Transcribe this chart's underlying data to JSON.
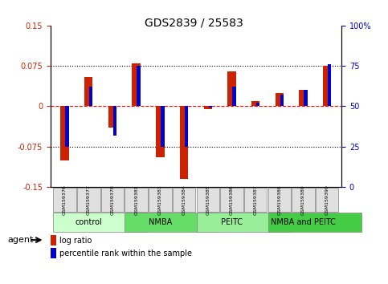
{
  "title": "GDS2839 / 25583",
  "samples": [
    "GSM159376",
    "GSM159377",
    "GSM159378",
    "GSM159381",
    "GSM159383",
    "GSM159384",
    "GSM159385",
    "GSM159386",
    "GSM159387",
    "GSM159388",
    "GSM159389",
    "GSM159390"
  ],
  "log_ratio": [
    -0.1,
    0.055,
    -0.04,
    0.08,
    -0.095,
    -0.135,
    -0.005,
    0.065,
    0.01,
    0.025,
    0.03,
    0.075
  ],
  "percentile_rank": [
    25,
    62,
    32,
    75,
    25,
    25,
    49,
    62,
    52,
    57,
    60,
    76
  ],
  "groups": [
    {
      "label": "control",
      "start": 0,
      "end": 3,
      "color": "#ccffcc"
    },
    {
      "label": "NMBA",
      "start": 3,
      "end": 6,
      "color": "#66dd66"
    },
    {
      "label": "PEITC",
      "start": 6,
      "end": 9,
      "color": "#99ee99"
    },
    {
      "label": "NMBA and PEITC",
      "start": 9,
      "end": 12,
      "color": "#44cc44"
    }
  ],
  "ylim": [
    -0.15,
    0.15
  ],
  "yticks_left": [
    -0.15,
    -0.075,
    0,
    0.075,
    0.15
  ],
  "yticks_right": [
    0,
    25,
    50,
    75,
    100
  ],
  "hlines": [
    -0.075,
    0,
    0.075
  ],
  "bar_color_red": "#cc2200",
  "bar_color_blue": "#0000cc",
  "background_color": "#ffffff",
  "plot_bg": "#ffffff",
  "left_tick_color": "#cc2200",
  "right_tick_color": "#0000cc"
}
